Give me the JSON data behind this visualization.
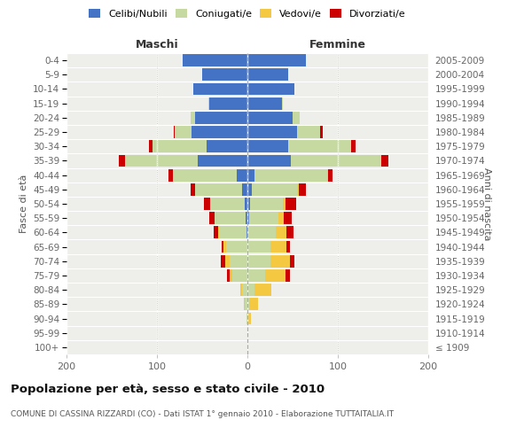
{
  "age_groups": [
    "100+",
    "95-99",
    "90-94",
    "85-89",
    "80-84",
    "75-79",
    "70-74",
    "65-69",
    "60-64",
    "55-59",
    "50-54",
    "45-49",
    "40-44",
    "35-39",
    "30-34",
    "25-29",
    "20-24",
    "15-19",
    "10-14",
    "5-9",
    "0-4"
  ],
  "birth_years": [
    "≤ 1909",
    "1910-1914",
    "1915-1919",
    "1920-1924",
    "1925-1929",
    "1930-1934",
    "1935-1939",
    "1940-1944",
    "1945-1949",
    "1950-1954",
    "1955-1959",
    "1960-1964",
    "1965-1969",
    "1970-1974",
    "1975-1979",
    "1980-1984",
    "1985-1989",
    "1990-1994",
    "1995-1999",
    "2000-2004",
    "2005-2009"
  ],
  "maschi": {
    "celibi": [
      0,
      0,
      0,
      0,
      0,
      0,
      0,
      0,
      1,
      2,
      3,
      6,
      12,
      55,
      45,
      62,
      58,
      42,
      60,
      50,
      72
    ],
    "coniugati": [
      0,
      0,
      1,
      3,
      6,
      17,
      20,
      24,
      30,
      34,
      38,
      52,
      70,
      80,
      60,
      18,
      5,
      1,
      0,
      0,
      0
    ],
    "vedovi": [
      0,
      0,
      0,
      1,
      2,
      3,
      5,
      2,
      1,
      0,
      0,
      0,
      0,
      0,
      0,
      0,
      0,
      0,
      0,
      0,
      0
    ],
    "divorziati": [
      0,
      0,
      0,
      0,
      0,
      3,
      4,
      2,
      5,
      6,
      7,
      5,
      5,
      7,
      4,
      1,
      0,
      0,
      0,
      0,
      0
    ]
  },
  "femmine": {
    "nubili": [
      0,
      0,
      0,
      0,
      0,
      0,
      0,
      0,
      1,
      2,
      3,
      5,
      8,
      48,
      45,
      55,
      50,
      38,
      52,
      45,
      65
    ],
    "coniugate": [
      0,
      0,
      1,
      2,
      8,
      20,
      25,
      25,
      30,
      32,
      36,
      50,
      80,
      100,
      70,
      25,
      8,
      1,
      0,
      0,
      0
    ],
    "vedove": [
      0,
      1,
      3,
      10,
      18,
      22,
      22,
      18,
      12,
      6,
      3,
      2,
      1,
      0,
      0,
      0,
      0,
      0,
      0,
      0,
      0
    ],
    "divorziate": [
      0,
      0,
      0,
      0,
      0,
      5,
      5,
      4,
      8,
      9,
      12,
      8,
      5,
      8,
      5,
      3,
      0,
      0,
      0,
      0,
      0
    ]
  },
  "colors": {
    "celibi_nubili": "#4472c4",
    "coniugati_e": "#c5d9a0",
    "vedovi_e": "#f5c842",
    "divorziati_e": "#cc0000"
  },
  "xlim": 200,
  "title": "Popolazione per età, sesso e stato civile - 2010",
  "subtitle": "COMUNE DI CASSINA RIZZARDI (CO) - Dati ISTAT 1° gennaio 2010 - Elaborazione TUTTAITALIA.IT",
  "ylabel_left": "Fasce di età",
  "ylabel_right": "Anni di nascita",
  "xlabel_left": "Maschi",
  "xlabel_right": "Femmine",
  "background_color": "#eeeeea"
}
